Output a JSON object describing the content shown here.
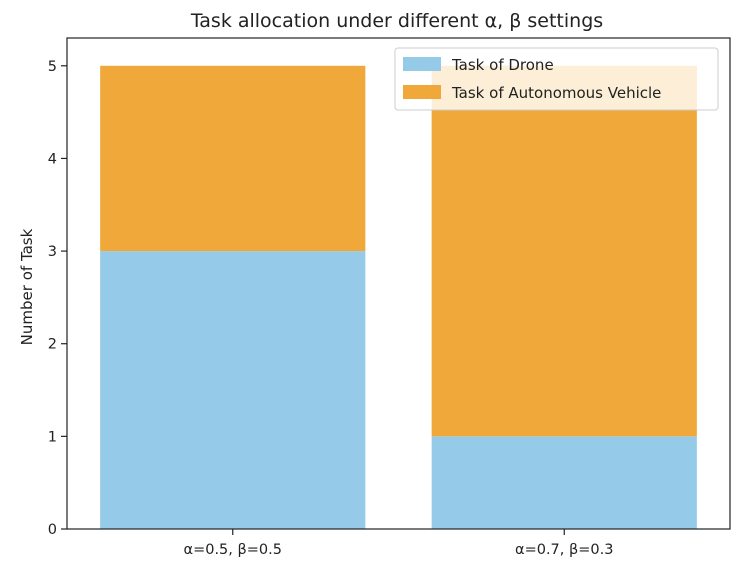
{
  "chart_data": {
    "type": "bar",
    "stacked": true,
    "title": "Task allocation under different α, β settings",
    "xlabel": "",
    "ylabel": "Number of Task",
    "categories": [
      "α=0.5, β=0.5",
      "α=0.7, β=0.3"
    ],
    "series": [
      {
        "name": "Task of Drone",
        "values": [
          3,
          1
        ],
        "color": "#95cbe8"
      },
      {
        "name": "Task of Autonomous Vehicle",
        "values": [
          2,
          4
        ],
        "color": "#f0a83b"
      }
    ],
    "ylim": [
      0,
      5.3
    ],
    "yticks": [
      0,
      1,
      2,
      3,
      4,
      5
    ],
    "grid": false,
    "legend_position": "top-right"
  }
}
